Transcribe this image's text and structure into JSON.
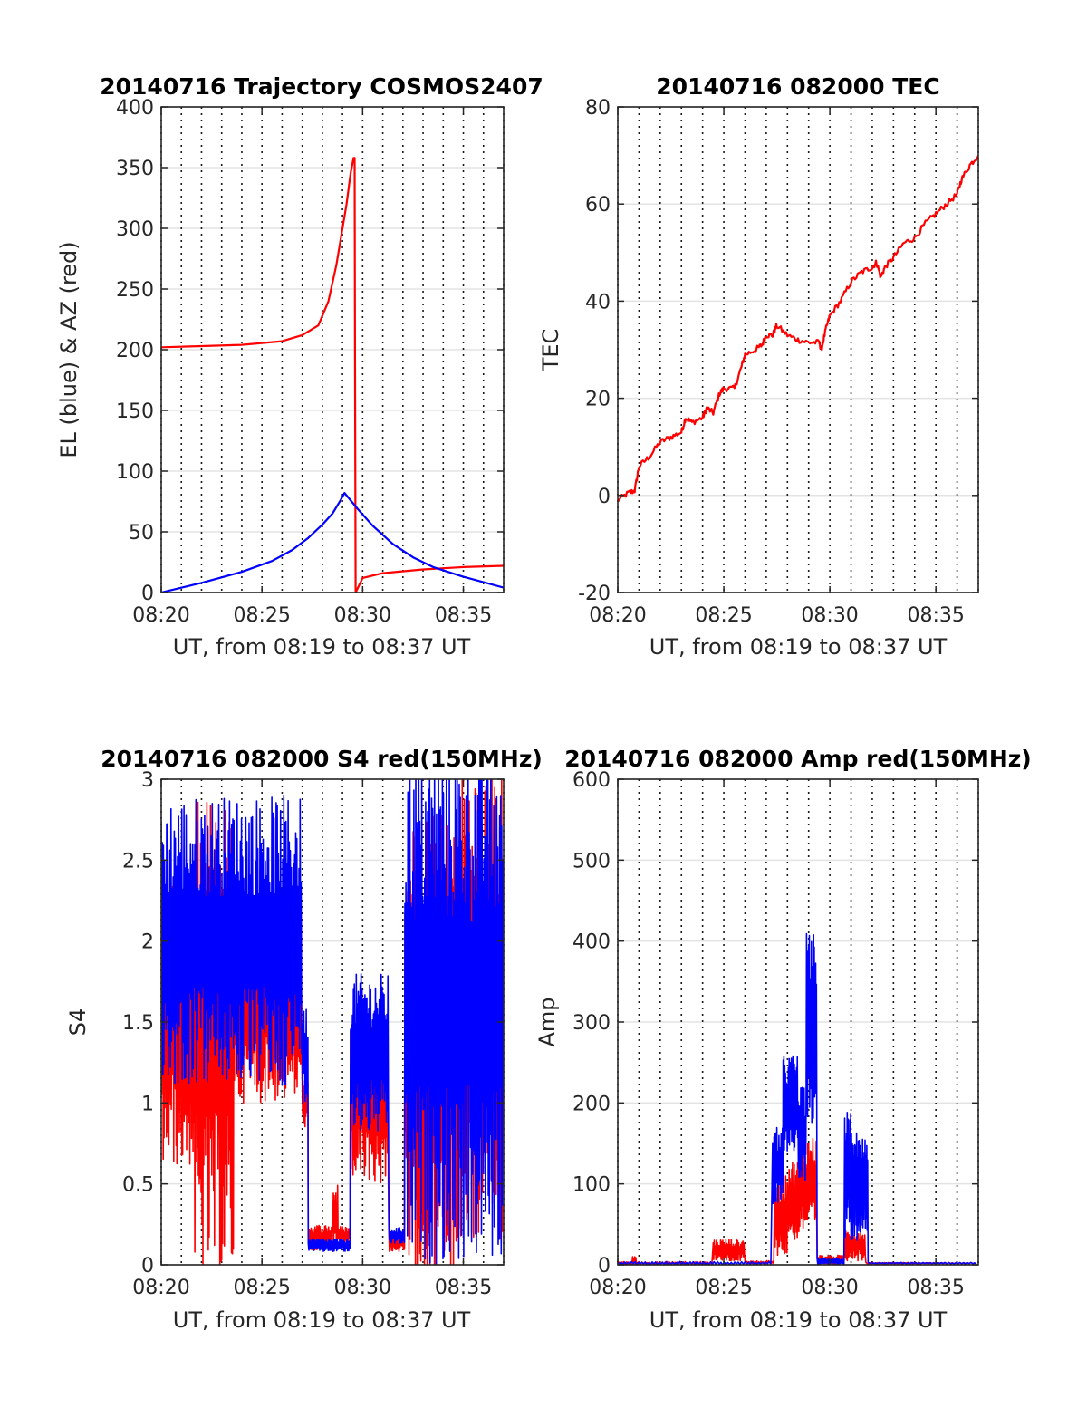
{
  "chart_data": [
    {
      "type": "line",
      "title": "20140716 Trajectory COSMOS2407",
      "xlabel": "UT, from 08:19 to 08:37 UT",
      "ylabel": "EL (blue) & AZ (red)",
      "xlim": [
        0,
        17
      ],
      "ylim": [
        0,
        400
      ],
      "xticks": [
        0,
        5,
        10,
        15
      ],
      "xticklabels": [
        "08:20",
        "08:25",
        "08:30",
        "08:35"
      ],
      "yticks": [
        0,
        50,
        100,
        150,
        200,
        250,
        300,
        350,
        400
      ],
      "yticklabels": [
        "0",
        "50",
        "100",
        "150",
        "200",
        "250",
        "300",
        "350",
        "400"
      ],
      "grid": "y solid, x dotted every minute",
      "series": [
        {
          "color": "#ff0000",
          "points": [
            [
              0,
              202
            ],
            [
              2,
              203
            ],
            [
              4,
              204
            ],
            [
              6,
              207
            ],
            [
              7,
              212
            ],
            [
              7.8,
              220
            ],
            [
              8.3,
              240
            ],
            [
              8.7,
              270
            ],
            [
              9,
              300
            ],
            [
              9.2,
              320
            ],
            [
              9.4,
              345
            ],
            [
              9.55,
              358
            ],
            [
              9.6,
              358
            ],
            [
              9.62,
              200
            ],
            [
              9.65,
              0
            ],
            [
              10,
              12
            ],
            [
              11,
              16
            ],
            [
              13,
              19
            ],
            [
              15,
              21
            ],
            [
              17,
              22
            ]
          ]
        },
        {
          "color": "#0000ff",
          "points": [
            [
              0,
              0
            ],
            [
              2,
              8
            ],
            [
              4,
              17
            ],
            [
              5.5,
              26
            ],
            [
              6.5,
              35
            ],
            [
              7.3,
              45
            ],
            [
              8,
              56
            ],
            [
              8.5,
              65
            ],
            [
              8.9,
              76
            ],
            [
              9.1,
              82
            ],
            [
              9.3,
              78
            ],
            [
              9.8,
              68
            ],
            [
              10.5,
              55
            ],
            [
              11.5,
              40
            ],
            [
              12.5,
              29
            ],
            [
              13.5,
              21
            ],
            [
              15,
              13
            ],
            [
              17,
              4
            ]
          ]
        }
      ]
    },
    {
      "type": "line",
      "title": "20140716 082000 TEC",
      "xlabel": "UT, from 08:19 to 08:37 UT",
      "ylabel": "TEC",
      "xlim": [
        0,
        17
      ],
      "ylim": [
        -20,
        80
      ],
      "xticks": [
        0,
        5,
        10,
        15
      ],
      "xticklabels": [
        "08:20",
        "08:25",
        "08:30",
        "08:35"
      ],
      "yticks": [
        -20,
        0,
        20,
        40,
        60,
        80
      ],
      "yticklabels": [
        "-20",
        "0",
        "20",
        "40",
        "60",
        "80"
      ],
      "grid": "y solid, x dotted every minute",
      "series": [
        {
          "color": "#ff0000",
          "points": [
            [
              0,
              -1
            ],
            [
              0.5,
              0.5
            ],
            [
              0.8,
              1
            ],
            [
              1,
              6
            ],
            [
              1.5,
              8
            ],
            [
              2,
              11
            ],
            [
              2.5,
              12
            ],
            [
              3,
              13
            ],
            [
              3.2,
              16
            ],
            [
              3.5,
              15
            ],
            [
              4,
              16
            ],
            [
              4.2,
              18
            ],
            [
              4.5,
              17
            ],
            [
              4.8,
              21
            ],
            [
              5,
              22
            ],
            [
              5.5,
              22
            ],
            [
              5.8,
              26
            ],
            [
              6,
              29
            ],
            [
              6.5,
              30
            ],
            [
              6.8,
              31
            ],
            [
              7,
              33
            ],
            [
              7.3,
              33
            ],
            [
              7.5,
              35
            ],
            [
              8,
              33
            ],
            [
              8.5,
              32
            ],
            [
              9,
              31.5
            ],
            [
              9.5,
              31.5
            ],
            [
              9.6,
              30
            ],
            [
              9.8,
              34
            ],
            [
              10,
              37
            ],
            [
              10.5,
              40
            ],
            [
              11,
              44
            ],
            [
              11.5,
              46
            ],
            [
              12,
              47
            ],
            [
              12.2,
              48
            ],
            [
              12.4,
              45
            ],
            [
              12.6,
              47
            ],
            [
              13,
              49
            ],
            [
              13.5,
              52
            ],
            [
              14,
              53
            ],
            [
              14.5,
              56
            ],
            [
              15,
              58
            ],
            [
              15.5,
              60
            ],
            [
              16,
              62
            ],
            [
              16.2,
              65
            ],
            [
              16.6,
              68
            ],
            [
              17,
              70
            ]
          ]
        }
      ]
    },
    {
      "type": "line",
      "title": "20140716 082000 S4 red(150MHz)",
      "xlabel": "UT, from 08:19 to 08:37 UT",
      "ylabel": "S4",
      "xlim": [
        0,
        17
      ],
      "ylim": [
        0,
        3
      ],
      "xticks": [
        0,
        5,
        10,
        15
      ],
      "xticklabels": [
        "08:20",
        "08:25",
        "08:30",
        "08:35"
      ],
      "yticks": [
        0,
        0.5,
        1,
        1.5,
        2,
        2.5,
        3
      ],
      "yticklabels": [
        "0",
        "0.5",
        "1",
        "1.5",
        "2",
        "2.5",
        "3"
      ],
      "grid": "y solid, x dotted every minute",
      "series": [
        {
          "color": "#ff0000",
          "segments": [
            {
              "x0": 0.0,
              "x1": 1.6,
              "mean": 1.5,
              "amp": 0.9,
              "n": 80
            },
            {
              "x0": 1.6,
              "x1": 3.6,
              "mean": 1.4,
              "amp": 1.5,
              "n": 90
            },
            {
              "x0": 3.6,
              "x1": 7.0,
              "mean": 1.6,
              "amp": 0.6,
              "n": 120
            },
            {
              "x0": 7.0,
              "x1": 7.3,
              "mean": 1.0,
              "amp": 0.15,
              "n": 15
            },
            {
              "x0": 7.3,
              "x1": 8.5,
              "mean": 0.17,
              "amp": 0.08,
              "n": 50
            },
            {
              "x0": 8.5,
              "x1": 8.8,
              "mean": 0.3,
              "amp": 0.2,
              "n": 14
            },
            {
              "x0": 8.8,
              "x1": 9.4,
              "mean": 0.18,
              "amp": 0.06,
              "n": 24
            },
            {
              "x0": 9.4,
              "x1": 11.3,
              "mean": 1.0,
              "amp": 0.5,
              "n": 80
            },
            {
              "x0": 11.3,
              "x1": 12.1,
              "mean": 0.14,
              "amp": 0.06,
              "n": 30
            },
            {
              "x0": 12.1,
              "x1": 14.8,
              "mean": 1.3,
              "amp": 1.5,
              "n": 120
            },
            {
              "x0": 14.8,
              "x1": 17.0,
              "mean": 1.6,
              "amp": 1.5,
              "n": 90
            }
          ]
        },
        {
          "color": "#0000ff",
          "segments": [
            {
              "x0": 0.0,
              "x1": 7.0,
              "mean": 2.0,
              "amp": 0.9,
              "n": 260
            },
            {
              "x0": 7.0,
              "x1": 7.3,
              "mean": 1.3,
              "amp": 0.3,
              "n": 15
            },
            {
              "x0": 7.3,
              "x1": 9.4,
              "mean": 0.12,
              "amp": 0.04,
              "n": 70
            },
            {
              "x0": 9.4,
              "x1": 11.3,
              "mean": 1.3,
              "amp": 0.5,
              "n": 80
            },
            {
              "x0": 11.3,
              "x1": 12.1,
              "mean": 0.18,
              "amp": 0.05,
              "n": 30
            },
            {
              "x0": 12.1,
              "x1": 17.0,
              "mean": 1.6,
              "amp": 1.6,
              "n": 200
            }
          ]
        }
      ]
    },
    {
      "type": "line",
      "title": "20140716 082000 Amp red(150MHz)",
      "xlabel": "UT, from 08:19 to 08:37 UT",
      "ylabel": "Amp",
      "xlim": [
        0,
        17
      ],
      "ylim": [
        0,
        600
      ],
      "xticks": [
        0,
        5,
        10,
        15
      ],
      "xticklabels": [
        "08:20",
        "08:25",
        "08:30",
        "08:35"
      ],
      "yticks": [
        0,
        100,
        200,
        300,
        400,
        500,
        600
      ],
      "yticklabels": [
        "0",
        "100",
        "200",
        "300",
        "400",
        "500",
        "600"
      ],
      "grid": "y solid, x dotted every minute",
      "series": [
        {
          "color": "#ff0000",
          "segments": [
            {
              "x0": 0.0,
              "x1": 0.7,
              "mean": 2,
              "amp": 2,
              "n": 20
            },
            {
              "x0": 0.7,
              "x1": 0.9,
              "mean": 6,
              "amp": 6,
              "n": 8
            },
            {
              "x0": 0.9,
              "x1": 4.5,
              "mean": 2,
              "amp": 2,
              "n": 60
            },
            {
              "x0": 4.5,
              "x1": 6.0,
              "mean": 18,
              "amp": 14,
              "n": 60
            },
            {
              "x0": 6.0,
              "x1": 7.4,
              "mean": 3,
              "amp": 2,
              "n": 30
            },
            {
              "x0": 7.4,
              "x1": 8.0,
              "mean": 60,
              "amp": 50,
              "n": 30
            },
            {
              "x0": 8.0,
              "x1": 8.6,
              "mean": 80,
              "amp": 50,
              "n": 30
            },
            {
              "x0": 8.6,
              "x1": 9.4,
              "mean": 100,
              "amp": 60,
              "n": 40
            },
            {
              "x0": 9.4,
              "x1": 10.7,
              "mean": 6,
              "amp": 6,
              "n": 40
            },
            {
              "x0": 10.7,
              "x1": 11.7,
              "mean": 25,
              "amp": 20,
              "n": 40
            },
            {
              "x0": 11.7,
              "x1": 17.0,
              "mean": 2,
              "amp": 1,
              "n": 60
            }
          ]
        },
        {
          "color": "#0000ff",
          "segments": [
            {
              "x0": 0.0,
              "x1": 7.3,
              "mean": 2,
              "amp": 2,
              "n": 90
            },
            {
              "x0": 7.3,
              "x1": 7.8,
              "mean": 120,
              "amp": 50,
              "n": 30
            },
            {
              "x0": 7.8,
              "x1": 8.5,
              "mean": 200,
              "amp": 60,
              "n": 40
            },
            {
              "x0": 8.5,
              "x1": 8.9,
              "mean": 160,
              "amp": 60,
              "n": 25
            },
            {
              "x0": 8.9,
              "x1": 9.4,
              "mean": 290,
              "amp": 120,
              "n": 30
            },
            {
              "x0": 9.4,
              "x1": 10.7,
              "mean": 4,
              "amp": 4,
              "n": 40
            },
            {
              "x0": 10.7,
              "x1": 11.3,
              "mean": 110,
              "amp": 80,
              "n": 30
            },
            {
              "x0": 11.3,
              "x1": 11.8,
              "mean": 100,
              "amp": 60,
              "n": 25
            },
            {
              "x0": 11.8,
              "x1": 17.0,
              "mean": 2,
              "amp": 1,
              "n": 60
            }
          ]
        }
      ]
    }
  ]
}
